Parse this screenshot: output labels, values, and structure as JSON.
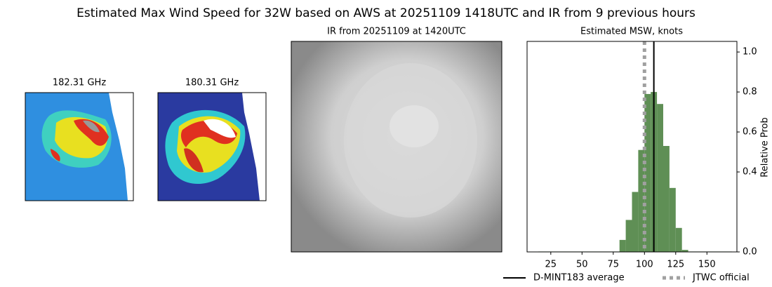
{
  "title": "Estimated Max Wind Speed for 32W based on AWS at 20251109 1418UTC and IR from 9 previous hours",
  "panels": [
    {
      "title": "182.31 GHz"
    },
    {
      "title": "180.31 GHz"
    },
    {
      "title": "IR from 20251109 at 1420UTC"
    }
  ],
  "chart_data": {
    "type": "histogram",
    "title": "Estimated MSW, knots",
    "ylabel": "Relative Prob",
    "bins": [
      15,
      20,
      25,
      30,
      35,
      40,
      45,
      50,
      55,
      60,
      65,
      70,
      75,
      80,
      85,
      90,
      95,
      100,
      105,
      110,
      115,
      120,
      125,
      130,
      135,
      140,
      145,
      150,
      155,
      160,
      165,
      170
    ],
    "values": [
      0.002,
      0.002,
      0.002,
      0.002,
      0.002,
      0.002,
      0.002,
      0.002,
      0.002,
      0.002,
      0.002,
      0.002,
      0.002,
      0.06,
      0.16,
      0.3,
      0.51,
      0.79,
      0.8,
      0.74,
      0.53,
      0.32,
      0.12,
      0.01,
      0.002,
      0.002,
      0.002,
      0.002,
      0.002,
      0.002,
      0.002
    ],
    "color": "#5f8f55",
    "xlim": [
      6,
      174
    ],
    "xticks": [
      25,
      50,
      75,
      100,
      125,
      150
    ],
    "ylim": [
      0,
      1.053
    ],
    "yticks": [
      {
        "value": 0,
        "label": "0.0"
      },
      {
        "value": 0.4,
        "label": "0.4"
      },
      {
        "value": 0.6,
        "label": "0.6"
      },
      {
        "value": 0.8,
        "label": "0.8"
      },
      {
        "value": 1,
        "label": "1.0"
      }
    ],
    "lines": [
      {
        "name": "D-MINT183 average",
        "value": 107.5,
        "color": "#000000",
        "style": "solid"
      },
      {
        "name": "JTWC official",
        "value": 100,
        "color": "#a0a0a0",
        "style": "dotted"
      }
    ]
  }
}
